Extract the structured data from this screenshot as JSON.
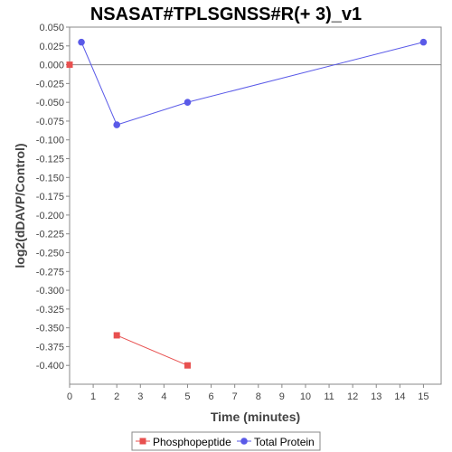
{
  "chart_data": {
    "type": "line",
    "title": "NSASAT#TPLSGNSS#R(+ 3)_v1",
    "xlabel": "Time (minutes)",
    "ylabel": "log2(dDAVP/Control)",
    "xlim": [
      0,
      15.75
    ],
    "ylim": [
      -0.425,
      0.05
    ],
    "xticks": [
      0,
      1,
      2,
      3,
      4,
      5,
      6,
      7,
      8,
      9,
      10,
      11,
      12,
      13,
      14,
      15
    ],
    "yticks": [
      0.05,
      0.025,
      0.0,
      -0.025,
      -0.05,
      -0.075,
      -0.1,
      -0.125,
      -0.15,
      -0.175,
      -0.2,
      -0.225,
      -0.25,
      -0.275,
      -0.3,
      -0.325,
      -0.35,
      -0.375,
      -0.4
    ],
    "ytick_labels": [
      "0.050",
      "0.025",
      "0.000",
      "-0.025",
      "-0.050",
      "-0.075",
      "-0.100",
      "-0.125",
      "-0.150",
      "-0.175",
      "-0.200",
      "-0.225",
      "-0.250",
      "-0.275",
      "-0.300",
      "-0.325",
      "-0.350",
      "-0.375",
      "-0.400"
    ],
    "zero_line": true,
    "grid": false,
    "legend_position": "bottom",
    "series": [
      {
        "name": "Phosphopeptide",
        "color": "#e8504f",
        "marker": "square",
        "points": [
          [
            0,
            0.0
          ]
        ],
        "segment": [
          [
            2,
            -0.36
          ],
          [
            5,
            -0.4
          ]
        ]
      },
      {
        "name": "Total Protein",
        "color": "#5a5ae8",
        "marker": "circle",
        "points": [
          [
            0.5,
            0.03
          ],
          [
            2,
            -0.08
          ],
          [
            5,
            -0.05
          ],
          [
            15,
            0.03
          ]
        ]
      }
    ]
  }
}
